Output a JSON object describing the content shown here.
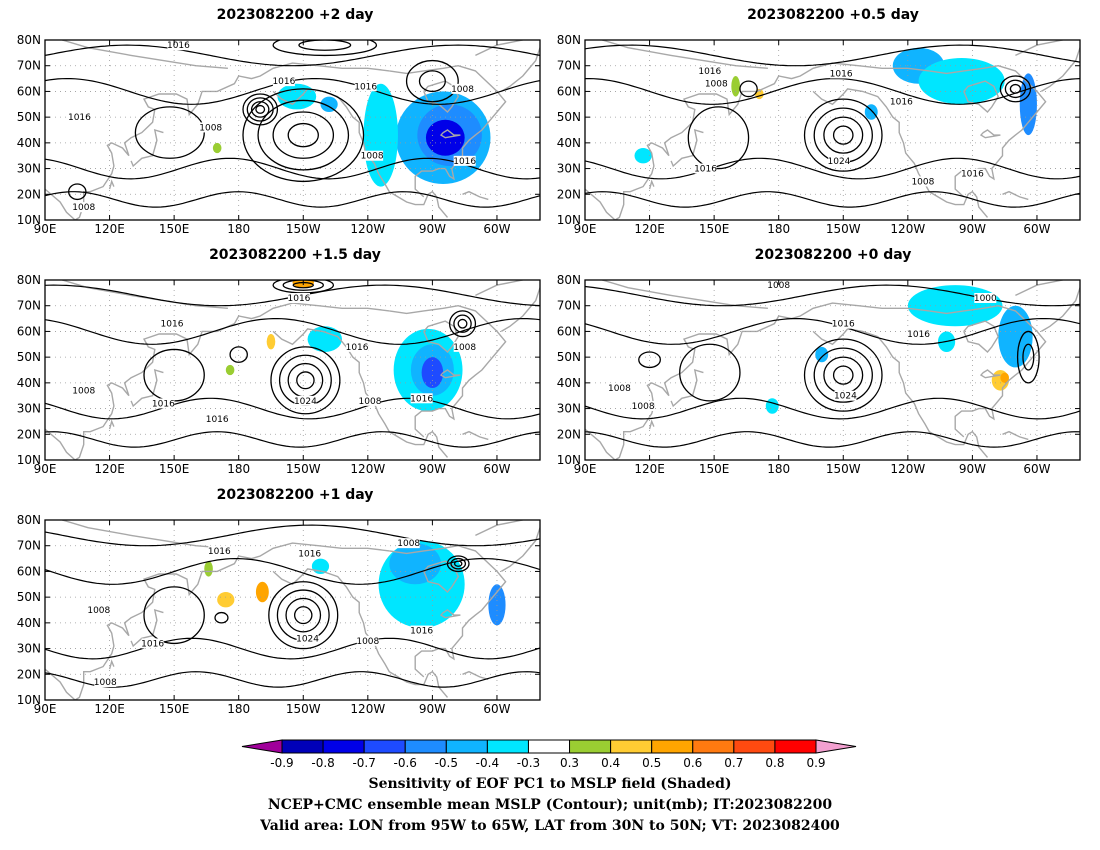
{
  "panels": [
    {
      "id": "p2",
      "title": "2023082200 +2 day",
      "pressure_labels": [
        {
          "text": "1016",
          "lon": 152,
          "lat": 78
        },
        {
          "text": "1016",
          "lon": 239,
          "lat": 62
        },
        {
          "text": "1016",
          "lon": 201,
          "lat": 64
        },
        {
          "text": "1016",
          "lon": 106,
          "lat": 50
        },
        {
          "text": "1008",
          "lon": 167,
          "lat": 46
        },
        {
          "text": "1008",
          "lon": 242,
          "lat": 35
        },
        {
          "text": "1016",
          "lon": 285,
          "lat": 33
        },
        {
          "text": "1008",
          "lon": 284,
          "lat": 61
        },
        {
          "text": "1008",
          "lon": 108,
          "lat": 15
        }
      ],
      "lows": [
        {
          "lon": 190,
          "lat": 53,
          "rx": 8,
          "ry": 6,
          "n": 4
        },
        {
          "lon": 270,
          "lat": 64,
          "rx": 12,
          "ry": 8,
          "n": 2
        },
        {
          "lon": 105,
          "lat": 21,
          "rx": 4,
          "ry": 3,
          "n": 1
        }
      ],
      "highs": [
        {
          "lon": 210,
          "lat": 43,
          "rx": 28,
          "ry": 18,
          "n": 4
        },
        {
          "lon": 220,
          "lat": 78,
          "rx": 24,
          "ry": 4,
          "n": 2
        },
        {
          "lon": 148,
          "lat": 44,
          "rx": 16,
          "ry": 10,
          "n": 1
        }
      ],
      "blobs": [
        {
          "lon": 275,
          "lat": 42,
          "rx": 22,
          "ry": 18,
          "v": -0.45
        },
        {
          "lon": 278,
          "lat": 43,
          "rx": 15,
          "ry": 12,
          "v": -0.6
        },
        {
          "lon": 276,
          "lat": 42,
          "rx": 9,
          "ry": 7,
          "v": -0.75
        },
        {
          "lon": 246,
          "lat": 43,
          "rx": 8,
          "ry": 20,
          "v": -0.35
        },
        {
          "lon": 207,
          "lat": 58,
          "rx": 9,
          "ry": 5,
          "v": -0.35
        },
        {
          "lon": 222,
          "lat": 55,
          "rx": 4,
          "ry": 3,
          "v": -0.45
        },
        {
          "lon": 170,
          "lat": 38,
          "rx": 2,
          "ry": 2,
          "v": 0.35
        }
      ]
    },
    {
      "id": "p05",
      "title": "2023082200 +0.5 day",
      "pressure_labels": [
        {
          "text": "1016",
          "lon": 148,
          "lat": 68
        },
        {
          "text": "1008",
          "lon": 151,
          "lat": 63
        },
        {
          "text": "1016",
          "lon": 209,
          "lat": 67
        },
        {
          "text": "1016",
          "lon": 237,
          "lat": 56
        },
        {
          "text": "1024",
          "lon": 208,
          "lat": 33
        },
        {
          "text": "1016",
          "lon": 146,
          "lat": 30
        },
        {
          "text": "1008",
          "lon": 247,
          "lat": 25
        },
        {
          "text": "1016",
          "lon": 270,
          "lat": 28
        }
      ],
      "lows": [
        {
          "lon": 290,
          "lat": 61,
          "rx": 7,
          "ry": 5,
          "n": 3
        },
        {
          "lon": 166,
          "lat": 61,
          "rx": 4,
          "ry": 3,
          "n": 1
        }
      ],
      "highs": [
        {
          "lon": 210,
          "lat": 43,
          "rx": 18,
          "ry": 14,
          "n": 4
        },
        {
          "lon": 152,
          "lat": 42,
          "rx": 14,
          "ry": 12,
          "n": 1
        }
      ],
      "blobs": [
        {
          "lon": 245,
          "lat": 70,
          "rx": 12,
          "ry": 7,
          "v": -0.45
        },
        {
          "lon": 265,
          "lat": 64,
          "rx": 20,
          "ry": 9,
          "v": -0.35
        },
        {
          "lon": 296,
          "lat": 55,
          "rx": 4,
          "ry": 12,
          "v": -0.55
        },
        {
          "lon": 223,
          "lat": 52,
          "rx": 3,
          "ry": 3,
          "v": -0.45
        },
        {
          "lon": 160,
          "lat": 62,
          "rx": 2,
          "ry": 4,
          "v": 0.35
        },
        {
          "lon": 171,
          "lat": 59,
          "rx": 2,
          "ry": 2,
          "v": 0.45
        },
        {
          "lon": 117,
          "lat": 35,
          "rx": 4,
          "ry": 3,
          "v": -0.35
        }
      ]
    },
    {
      "id": "p15",
      "title": "2023082200 +1.5 day",
      "pressure_labels": [
        {
          "text": "1016",
          "lon": 208,
          "lat": 73
        },
        {
          "text": "1016",
          "lon": 149,
          "lat": 63
        },
        {
          "text": "1016",
          "lon": 235,
          "lat": 54
        },
        {
          "text": "1008",
          "lon": 285,
          "lat": 54
        },
        {
          "text": "1008",
          "lon": 108,
          "lat": 37
        },
        {
          "text": "1016",
          "lon": 145,
          "lat": 32
        },
        {
          "text": "1024",
          "lon": 211,
          "lat": 33
        },
        {
          "text": "1008",
          "lon": 241,
          "lat": 33
        },
        {
          "text": "1016",
          "lon": 265,
          "lat": 34
        },
        {
          "text": "1016",
          "lon": 170,
          "lat": 26
        }
      ],
      "lows": [
        {
          "lon": 284,
          "lat": 63,
          "rx": 6,
          "ry": 5,
          "n": 3
        },
        {
          "lon": 180,
          "lat": 51,
          "rx": 4,
          "ry": 3,
          "n": 1
        }
      ],
      "highs": [
        {
          "lon": 211,
          "lat": 41,
          "rx": 16,
          "ry": 13,
          "n": 4
        },
        {
          "lon": 210,
          "lat": 78,
          "rx": 14,
          "ry": 3,
          "n": 3
        },
        {
          "lon": 150,
          "lat": 43,
          "rx": 14,
          "ry": 10,
          "n": 1
        }
      ],
      "blobs": [
        {
          "lon": 268,
          "lat": 45,
          "rx": 16,
          "ry": 16,
          "v": -0.35
        },
        {
          "lon": 270,
          "lat": 45,
          "rx": 10,
          "ry": 10,
          "v": -0.5
        },
        {
          "lon": 270,
          "lat": 44,
          "rx": 5,
          "ry": 6,
          "v": -0.65
        },
        {
          "lon": 220,
          "lat": 57,
          "rx": 8,
          "ry": 5,
          "v": -0.4
        },
        {
          "lon": 210,
          "lat": 79,
          "rx": 5,
          "ry": 2,
          "v": 0.5
        },
        {
          "lon": 195,
          "lat": 56,
          "rx": 2,
          "ry": 3,
          "v": 0.4
        },
        {
          "lon": 176,
          "lat": 45,
          "rx": 2,
          "ry": 2,
          "v": 0.35
        }
      ]
    },
    {
      "id": "p0",
      "title": "2023082200 +0 day",
      "pressure_labels": [
        {
          "text": "1008",
          "lon": 180,
          "lat": 78
        },
        {
          "text": "1000",
          "lon": 276,
          "lat": 73
        },
        {
          "text": "1016",
          "lon": 210,
          "lat": 63
        },
        {
          "text": "1016",
          "lon": 245,
          "lat": 59
        },
        {
          "text": "1008",
          "lon": 106,
          "lat": 38
        },
        {
          "text": "1008",
          "lon": 117,
          "lat": 31
        },
        {
          "text": "1024",
          "lon": 211,
          "lat": 35
        }
      ],
      "lows": [
        {
          "lon": 296,
          "lat": 50,
          "rx": 5,
          "ry": 10,
          "n": 2
        },
        {
          "lon": 120,
          "lat": 49,
          "rx": 5,
          "ry": 3,
          "n": 1
        }
      ],
      "highs": [
        {
          "lon": 210,
          "lat": 43,
          "rx": 18,
          "ry": 14,
          "n": 4
        },
        {
          "lon": 148,
          "lat": 44,
          "rx": 14,
          "ry": 11,
          "n": 1
        }
      ],
      "blobs": [
        {
          "lon": 262,
          "lat": 70,
          "rx": 22,
          "ry": 8,
          "v": -0.4
        },
        {
          "lon": 290,
          "lat": 58,
          "rx": 8,
          "ry": 12,
          "v": -0.5
        },
        {
          "lon": 283,
          "lat": 41,
          "rx": 4,
          "ry": 4,
          "v": 0.4
        },
        {
          "lon": 285,
          "lat": 42,
          "rx": 2,
          "ry": 2,
          "v": 0.5
        },
        {
          "lon": 200,
          "lat": 51,
          "rx": 3,
          "ry": 3,
          "v": -0.45
        },
        {
          "lon": 177,
          "lat": 31,
          "rx": 3,
          "ry": 3,
          "v": -0.35
        },
        {
          "lon": 258,
          "lat": 56,
          "rx": 4,
          "ry": 4,
          "v": -0.35
        }
      ]
    },
    {
      "id": "p1",
      "title": "2023082200 +1 day",
      "pressure_labels": [
        {
          "text": "1008",
          "lon": 259,
          "lat": 71
        },
        {
          "text": "1016",
          "lon": 171,
          "lat": 68
        },
        {
          "text": "1016",
          "lon": 213,
          "lat": 67
        },
        {
          "text": "1008",
          "lon": 115,
          "lat": 45
        },
        {
          "text": "1016",
          "lon": 140,
          "lat": 32
        },
        {
          "text": "1024",
          "lon": 212,
          "lat": 34
        },
        {
          "text": "1008",
          "lon": 240,
          "lat": 33
        },
        {
          "text": "1016",
          "lon": 265,
          "lat": 37
        },
        {
          "text": "1008",
          "lon": 118,
          "lat": 17
        }
      ],
      "lows": [
        {
          "lon": 282,
          "lat": 63,
          "rx": 5,
          "ry": 3,
          "n": 3
        },
        {
          "lon": 172,
          "lat": 42,
          "rx": 3,
          "ry": 2,
          "n": 1
        }
      ],
      "highs": [
        {
          "lon": 210,
          "lat": 43,
          "rx": 16,
          "ry": 13,
          "n": 4
        },
        {
          "lon": 150,
          "lat": 43,
          "rx": 14,
          "ry": 11,
          "n": 1
        }
      ],
      "blobs": [
        {
          "lon": 265,
          "lat": 55,
          "rx": 20,
          "ry": 17,
          "v": -0.35
        },
        {
          "lon": 262,
          "lat": 63,
          "rx": 12,
          "ry": 8,
          "v": -0.5
        },
        {
          "lon": 300,
          "lat": 47,
          "rx": 4,
          "ry": 8,
          "v": -0.6
        },
        {
          "lon": 174,
          "lat": 49,
          "rx": 4,
          "ry": 3,
          "v": 0.45
        },
        {
          "lon": 191,
          "lat": 52,
          "rx": 3,
          "ry": 4,
          "v": 0.5
        },
        {
          "lon": 166,
          "lat": 61,
          "rx": 2,
          "ry": 3,
          "v": 0.35
        },
        {
          "lon": 218,
          "lat": 62,
          "rx": 4,
          "ry": 3,
          "v": -0.35
        }
      ]
    }
  ],
  "map_axes": {
    "lon_range": [
      90,
      320
    ],
    "lat_range": [
      10,
      80
    ],
    "lon_ticks": [
      {
        "lon": 90,
        "label": "90E"
      },
      {
        "lon": 120,
        "label": "120E"
      },
      {
        "lon": 150,
        "label": "150E"
      },
      {
        "lon": 180,
        "label": "180"
      },
      {
        "lon": 210,
        "label": "150W"
      },
      {
        "lon": 240,
        "label": "120W"
      },
      {
        "lon": 270,
        "label": "90W"
      },
      {
        "lon": 300,
        "label": "60W"
      }
    ],
    "lat_ticks": [
      {
        "lat": 10,
        "label": "10N"
      },
      {
        "lat": 20,
        "label": "20N"
      },
      {
        "lat": 30,
        "label": "30N"
      },
      {
        "lat": 40,
        "label": "40N"
      },
      {
        "lat": 50,
        "label": "50N"
      },
      {
        "lat": 60,
        "label": "60N"
      },
      {
        "lat": 70,
        "label": "70N"
      },
      {
        "lat": 80,
        "label": "80N"
      }
    ]
  },
  "colors": {
    "contour": "#000000",
    "coast": "#a8a8a8",
    "grid": "#9a9a9a"
  },
  "colorbar": {
    "levels": [
      "-0.9",
      "-0.8",
      "-0.7",
      "-0.6",
      "-0.5",
      "-0.4",
      "-0.3",
      "0.3",
      "0.4",
      "0.5",
      "0.6",
      "0.7",
      "0.8",
      "0.9"
    ],
    "low_arrow_color": "#a0009a",
    "high_arrow_color": "#f3a0d0",
    "colors": [
      "#0000b8",
      "#0000e8",
      "#1e4bff",
      "#1e8cff",
      "#10b4ff",
      "#00e6ff",
      "#ffffff",
      "#9acd32",
      "#ffcc33",
      "#ffa500",
      "#ff7a10",
      "#ff4a10",
      "#ff0000"
    ]
  },
  "caption": {
    "line1": "Sensitivity of EOF PC1 to MSLP field (Shaded)",
    "line2": "NCEP+CMC ensemble mean MSLP (Contour); unit(mb); IT:2023082200",
    "line3": "Valid area: LON from 95W to 65W, LAT from 30N to 50N; VT: 2023082400"
  }
}
